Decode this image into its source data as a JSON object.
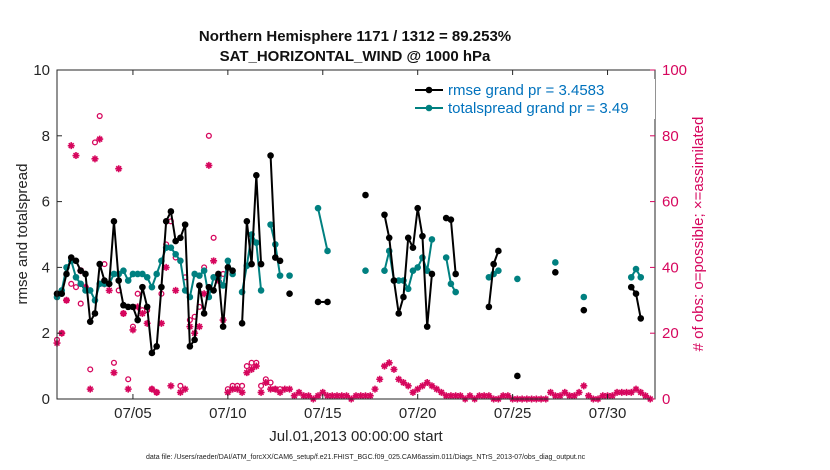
{
  "chart_data": {
    "type": "line",
    "title_line1": "Northern Hemisphere 1171 / 1312 = 89.253%",
    "title_line2": "SAT_HORIZONTAL_WIND @ 1000 hPa",
    "xlabel": "Jul.01,2013 00:00:00 start",
    "ylabel": "rmse and totalspread",
    "ylabel_right": "# of obs: o=possible; ×=assimilated",
    "xlim": [
      1,
      32.5
    ],
    "ylim": [
      0,
      10
    ],
    "ylim_right": [
      0,
      100
    ],
    "xticks": [
      5,
      10,
      15,
      20,
      25,
      30
    ],
    "xtick_labels": [
      "07/05",
      "07/10",
      "07/15",
      "07/20",
      "07/25",
      "07/30"
    ],
    "yticks": [
      0,
      2,
      4,
      6,
      8,
      10
    ],
    "ytick_labels": [
      "0",
      "2",
      "4",
      "6",
      "8",
      "10"
    ],
    "yticks_right": [
      0,
      20,
      40,
      60,
      80,
      100
    ],
    "ytick_labels_right": [
      "0",
      "20",
      "40",
      "60",
      "80",
      "100"
    ],
    "footnote": "data file: /Users/raeder/DAI/ATM_forcXX/CAM6_setup/f.e21.FHIST_BGC.f09_025.CAM6assim.011/Diags_NTrS_2013-07/obs_diag_output.nc",
    "colors": {
      "rmse": "#000000",
      "spread": "#008080",
      "obs": "#d6065d",
      "legend_text": "#0072bd"
    },
    "series": [
      {
        "name": "rmse grand pr = 3.4583",
        "color": "#000000",
        "segments": [
          [
            [
              1.0,
              3.2
            ],
            [
              1.25,
              3.2
            ],
            [
              1.5,
              3.8
            ],
            [
              1.75,
              4.3
            ],
            [
              2.0,
              4.2
            ],
            [
              2.25,
              3.9
            ],
            [
              2.5,
              3.8
            ],
            [
              2.75,
              2.35
            ],
            [
              3.0,
              2.6
            ],
            [
              3.25,
              4.1
            ],
            [
              3.5,
              3.6
            ],
            [
              3.75,
              3.5
            ],
            [
              4.0,
              5.4
            ],
            [
              4.25,
              3.6
            ],
            [
              4.5,
              2.85
            ],
            [
              4.75,
              2.8
            ],
            [
              5.0,
              2.8
            ],
            [
              5.25,
              2.4
            ],
            [
              5.5,
              3.4
            ],
            [
              5.75,
              2.8
            ],
            [
              6.0,
              1.4
            ],
            [
              6.25,
              1.6
            ],
            [
              6.5,
              3.4
            ],
            [
              6.75,
              5.4
            ],
            [
              7.0,
              5.7
            ],
            [
              7.25,
              4.8
            ],
            [
              7.5,
              4.9
            ],
            [
              7.75,
              5.3
            ],
            [
              8.0,
              1.6
            ],
            [
              8.25,
              1.8
            ],
            [
              8.5,
              3.45
            ],
            [
              8.75,
              2.6
            ],
            [
              9.0,
              3.4
            ],
            [
              9.25,
              3.3
            ],
            [
              9.5,
              3.8
            ],
            [
              9.75,
              2.2
            ],
            [
              10.0,
              4.0
            ],
            [
              10.25,
              3.9
            ]
          ],
          [
            [
              10.75,
              2.3
            ],
            [
              11.0,
              5.4
            ],
            [
              11.25,
              4.1
            ],
            [
              11.5,
              6.8
            ],
            [
              11.75,
              4.1
            ]
          ],
          [
            [
              12.25,
              7.4
            ],
            [
              12.5,
              4.3
            ],
            [
              12.75,
              4.2
            ]
          ],
          [
            [
              13.25,
              3.2
            ]
          ],
          [
            [
              14.75,
              2.95
            ],
            [
              15.25,
              2.95
            ]
          ],
          [
            [
              17.25,
              6.2
            ]
          ],
          [
            [
              18.25,
              5.6
            ],
            [
              18.5,
              4.9
            ],
            [
              18.75,
              3.6
            ],
            [
              19.0,
              2.6
            ],
            [
              19.25,
              3.1
            ],
            [
              19.5,
              4.9
            ],
            [
              19.75,
              4.6
            ],
            [
              20.0,
              5.8
            ],
            [
              20.25,
              4.95
            ],
            [
              20.5,
              2.2
            ],
            [
              20.75,
              3.8
            ]
          ],
          [
            [
              21.5,
              5.5
            ],
            [
              21.75,
              5.45
            ],
            [
              22.0,
              3.8
            ]
          ],
          [
            [
              23.75,
              2.8
            ],
            [
              24.0,
              4.1
            ],
            [
              24.25,
              4.5
            ]
          ],
          [
            [
              25.25,
              0.7
            ]
          ],
          [
            [
              27.25,
              3.85
            ]
          ],
          [
            [
              28.75,
              2.7
            ]
          ],
          [
            [
              31.25,
              3.4
            ],
            [
              31.5,
              3.2
            ],
            [
              31.75,
              2.45
            ]
          ]
        ]
      },
      {
        "name": "totalspread grand pr = 3.49",
        "color": "#008080",
        "segments": [
          [
            [
              1.0,
              3.1
            ],
            [
              1.25,
              3.3
            ],
            [
              1.5,
              4.0
            ],
            [
              1.75,
              4.2
            ],
            [
              2.0,
              3.7
            ],
            [
              2.25,
              3.5
            ],
            [
              2.5,
              3.3
            ],
            [
              2.75,
              3.3
            ],
            [
              3.0,
              3.0
            ],
            [
              3.25,
              3.5
            ],
            [
              3.5,
              3.5
            ],
            [
              3.75,
              3.5
            ],
            [
              4.0,
              3.8
            ],
            [
              4.25,
              3.8
            ],
            [
              4.5,
              3.9
            ],
            [
              4.75,
              3.6
            ],
            [
              5.0,
              3.8
            ],
            [
              5.25,
              3.8
            ],
            [
              5.5,
              3.8
            ],
            [
              5.75,
              3.7
            ],
            [
              6.0,
              3.4
            ],
            [
              6.25,
              3.8
            ],
            [
              6.5,
              4.2
            ],
            [
              6.75,
              4.6
            ],
            [
              7.0,
              4.6
            ],
            [
              7.25,
              4.4
            ],
            [
              7.5,
              4.2
            ],
            [
              7.75,
              3.3
            ],
            [
              8.0,
              3.1
            ],
            [
              8.25,
              3.8
            ],
            [
              8.5,
              3.75
            ],
            [
              8.75,
              3.9
            ],
            [
              9.0,
              3.1
            ],
            [
              9.25,
              3.7
            ],
            [
              9.5,
              3.7
            ],
            [
              9.75,
              3.45
            ],
            [
              10.0,
              4.2
            ],
            [
              10.25,
              3.8
            ]
          ],
          [
            [
              10.75,
              3.25
            ],
            [
              11.0,
              4.05
            ],
            [
              11.25,
              5.0
            ],
            [
              11.5,
              4.75
            ],
            [
              11.75,
              3.3
            ]
          ],
          [
            [
              12.25,
              5.3
            ],
            [
              12.5,
              4.7
            ],
            [
              12.75,
              3.75
            ]
          ],
          [
            [
              13.25,
              3.75
            ]
          ],
          [
            [
              14.75,
              5.8
            ],
            [
              15.25,
              4.5
            ]
          ],
          [
            [
              17.25,
              3.9
            ]
          ],
          [
            [
              18.25,
              3.9
            ],
            [
              18.5,
              4.5
            ],
            [
              18.75,
              3.6
            ],
            [
              19.0,
              3.6
            ],
            [
              19.25,
              3.6
            ],
            [
              19.5,
              3.35
            ],
            [
              19.75,
              3.9
            ],
            [
              20.0,
              4.0
            ],
            [
              20.25,
              4.3
            ],
            [
              20.5,
              3.9
            ],
            [
              20.75,
              4.85
            ]
          ],
          [
            [
              21.5,
              4.3
            ],
            [
              21.75,
              3.5
            ],
            [
              22.0,
              3.25
            ]
          ],
          [
            [
              23.75,
              3.7
            ],
            [
              24.0,
              3.8
            ],
            [
              24.25,
              3.9
            ]
          ],
          [
            [
              25.25,
              3.65
            ]
          ],
          [
            [
              27.25,
              4.15
            ]
          ],
          [
            [
              28.75,
              3.1
            ]
          ],
          [
            [
              31.25,
              3.7
            ],
            [
              31.5,
              3.95
            ],
            [
              31.75,
              3.7
            ]
          ]
        ]
      }
    ],
    "obs_possible": [
      [
        1.0,
        18
      ],
      [
        1.25,
        20
      ],
      [
        1.5,
        30
      ],
      [
        1.75,
        35
      ],
      [
        2.0,
        34
      ],
      [
        2.25,
        29
      ],
      [
        2.5,
        34
      ],
      [
        2.75,
        9
      ],
      [
        3.0,
        78
      ],
      [
        3.25,
        86
      ],
      [
        3.5,
        41
      ],
      [
        3.75,
        35
      ],
      [
        4.0,
        11
      ],
      [
        4.25,
        33
      ],
      [
        4.5,
        26
      ],
      [
        4.75,
        6
      ],
      [
        5.0,
        22
      ],
      [
        5.25,
        32
      ],
      [
        5.5,
        27
      ],
      [
        5.75,
        27
      ],
      [
        6.0,
        3
      ],
      [
        6.25,
        2
      ],
      [
        6.5,
        32
      ],
      [
        6.75,
        47
      ],
      [
        7.0,
        54
      ],
      [
        7.25,
        43
      ],
      [
        7.5,
        4
      ],
      [
        7.75,
        37
      ],
      [
        8.0,
        24
      ],
      [
        8.25,
        25
      ],
      [
        8.5,
        28
      ],
      [
        8.75,
        40
      ],
      [
        9.0,
        80
      ],
      [
        9.25,
        49
      ],
      [
        9.5,
        38
      ],
      [
        9.75,
        38
      ],
      [
        10.0,
        3
      ],
      [
        10.25,
        4
      ],
      [
        10.5,
        4
      ],
      [
        10.75,
        4
      ],
      [
        11.0,
        10
      ],
      [
        11.25,
        11
      ],
      [
        11.5,
        11
      ],
      [
        11.75,
        4
      ],
      [
        12.0,
        6
      ],
      [
        12.25,
        5
      ],
      [
        12.5,
        3
      ],
      [
        12.75,
        3
      ]
    ],
    "obs_assimilated": [
      [
        1.0,
        17
      ],
      [
        1.25,
        20
      ],
      [
        1.5,
        30
      ],
      [
        1.75,
        77
      ],
      [
        2.0,
        74
      ],
      [
        2.25,
        39
      ],
      [
        2.5,
        34
      ],
      [
        2.75,
        3
      ],
      [
        3.0,
        73
      ],
      [
        3.25,
        79
      ],
      [
        3.5,
        35
      ],
      [
        3.75,
        33
      ],
      [
        4.0,
        8
      ],
      [
        4.25,
        70
      ],
      [
        4.5,
        26
      ],
      [
        4.75,
        3
      ],
      [
        5.0,
        21
      ],
      [
        5.25,
        28
      ],
      [
        5.5,
        26
      ],
      [
        5.75,
        23
      ],
      [
        6.0,
        3
      ],
      [
        6.25,
        2
      ],
      [
        6.5,
        23
      ],
      [
        6.75,
        40
      ],
      [
        7.0,
        4
      ],
      [
        7.25,
        33
      ],
      [
        7.5,
        2
      ],
      [
        7.75,
        3
      ],
      [
        8.0,
        22
      ],
      [
        8.25,
        20
      ],
      [
        8.5,
        22
      ],
      [
        8.75,
        32
      ],
      [
        9.0,
        71
      ],
      [
        9.25,
        42
      ],
      [
        9.5,
        36
      ],
      [
        9.75,
        24
      ],
      [
        10.0,
        2
      ],
      [
        10.25,
        3
      ],
      [
        10.5,
        3
      ],
      [
        10.75,
        2
      ],
      [
        11.0,
        8
      ],
      [
        11.25,
        9
      ],
      [
        11.5,
        10
      ],
      [
        11.75,
        2
      ],
      [
        12.0,
        5
      ],
      [
        12.25,
        3
      ],
      [
        12.5,
        3
      ],
      [
        12.75,
        2
      ],
      [
        13.0,
        3
      ],
      [
        13.25,
        3
      ],
      [
        13.5,
        1
      ],
      [
        13.75,
        2
      ],
      [
        14.0,
        1
      ],
      [
        14.25,
        1
      ],
      [
        14.5,
        0
      ],
      [
        14.75,
        1
      ],
      [
        15.0,
        2
      ],
      [
        15.25,
        1
      ],
      [
        15.5,
        1
      ],
      [
        15.75,
        1
      ],
      [
        16.0,
        1
      ],
      [
        16.25,
        1
      ],
      [
        16.5,
        0
      ],
      [
        16.75,
        1
      ],
      [
        17.0,
        1
      ],
      [
        17.25,
        1
      ],
      [
        17.5,
        1
      ],
      [
        17.75,
        3
      ],
      [
        18.0,
        6
      ],
      [
        18.25,
        10
      ],
      [
        18.5,
        11
      ],
      [
        18.75,
        9
      ],
      [
        19.0,
        6
      ],
      [
        19.25,
        5
      ],
      [
        19.5,
        4
      ],
      [
        19.75,
        2
      ],
      [
        20.0,
        3
      ],
      [
        20.25,
        4
      ],
      [
        20.5,
        5
      ],
      [
        20.75,
        4
      ],
      [
        21.0,
        3
      ],
      [
        21.25,
        2
      ],
      [
        21.5,
        1
      ],
      [
        21.75,
        1
      ],
      [
        22.0,
        1
      ],
      [
        22.25,
        1
      ],
      [
        22.5,
        0
      ],
      [
        22.75,
        1
      ],
      [
        23.0,
        0
      ],
      [
        23.25,
        1
      ],
      [
        23.5,
        1
      ],
      [
        23.75,
        1
      ],
      [
        24.0,
        0
      ],
      [
        24.25,
        0
      ],
      [
        24.5,
        1
      ],
      [
        24.75,
        1
      ],
      [
        25.0,
        0
      ],
      [
        25.25,
        0
      ],
      [
        25.5,
        0
      ],
      [
        25.75,
        0
      ],
      [
        26.0,
        0
      ],
      [
        26.25,
        0
      ],
      [
        26.5,
        0
      ],
      [
        26.75,
        0
      ],
      [
        27.0,
        2
      ],
      [
        27.25,
        1
      ],
      [
        27.5,
        1
      ],
      [
        27.75,
        2
      ],
      [
        28.0,
        1
      ],
      [
        28.25,
        1
      ],
      [
        28.5,
        2
      ],
      [
        28.75,
        4
      ],
      [
        29.0,
        1
      ],
      [
        29.25,
        0
      ],
      [
        29.5,
        0
      ],
      [
        29.75,
        1
      ],
      [
        30.0,
        1
      ],
      [
        30.25,
        1
      ],
      [
        30.5,
        2
      ],
      [
        30.75,
        2
      ],
      [
        31.0,
        2
      ],
      [
        31.25,
        2
      ],
      [
        31.5,
        3
      ],
      [
        31.75,
        2
      ],
      [
        32.0,
        1
      ],
      [
        32.25,
        0
      ]
    ]
  }
}
